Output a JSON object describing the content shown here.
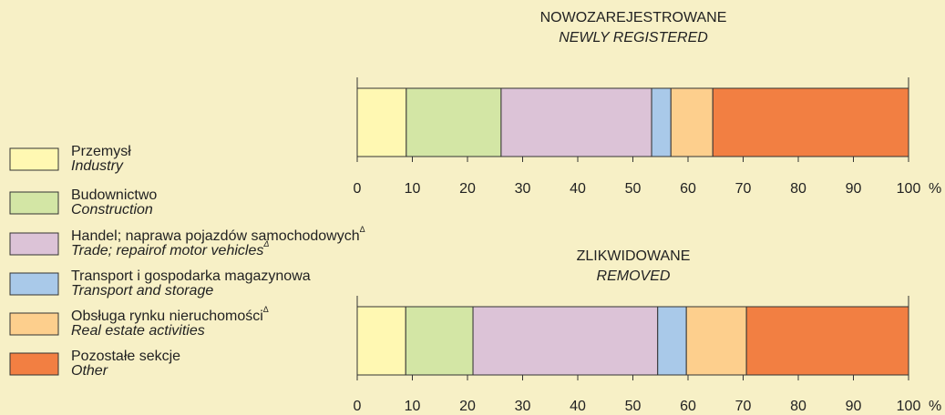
{
  "chart_data": {
    "type": "bar",
    "orientation": "horizontal",
    "stacked": true,
    "categories": [
      "NOWOZAREJESTROWANE",
      "ZLIKWIDOWANE"
    ],
    "categories_en": [
      "NEWLY REGISTERED",
      "REMOVED"
    ],
    "xlim": [
      0,
      100
    ],
    "xticks": [
      0,
      10,
      20,
      30,
      40,
      50,
      60,
      70,
      80,
      90,
      100
    ],
    "x_unit": "%",
    "series": [
      {
        "name": "Przemysł",
        "name_en": "Industry",
        "color": "#fff8b2",
        "values": [
          8.9,
          8.8
        ]
      },
      {
        "name": "Budownictwo",
        "name_en": "Construction",
        "color": "#d3e6a5",
        "values": [
          17.2,
          12.2
        ]
      },
      {
        "name": "Handel; naprawa pojazdów samochodowych",
        "name_mark": "Δ",
        "name_en": "Trade; repairof motor vehicles",
        "name_en_mark": "Δ",
        "color": "#dcc3d7",
        "values": [
          27.3,
          33.5
        ]
      },
      {
        "name": "Transport i gospodarka magazynowa",
        "name_en": "Transport and storage",
        "color": "#a9c9e9",
        "values": [
          3.5,
          5.2
        ]
      },
      {
        "name": "Obsługa rynku nieruchomości",
        "name_mark": "Δ",
        "name_en": "Real estate activities",
        "color": "#fdcf8d",
        "values": [
          7.6,
          10.9
        ]
      },
      {
        "name": "Pozostałe sekcje",
        "name_en": "Other",
        "color": "#f27f42",
        "values": [
          35.5,
          29.4
        ]
      }
    ]
  }
}
